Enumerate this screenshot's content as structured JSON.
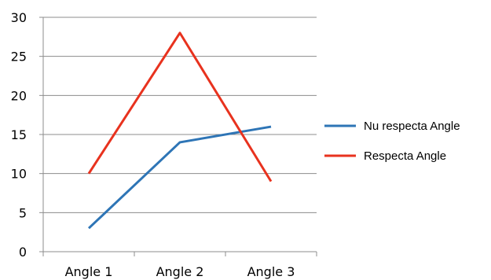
{
  "chart_data": {
    "type": "line",
    "categories": [
      "Angle 1",
      "Angle 2",
      "Angle 3"
    ],
    "series": [
      {
        "name": "Nu respecta Angle",
        "values": [
          3,
          14,
          16
        ],
        "color": "#2e75b6"
      },
      {
        "name": "Respecta Angle",
        "values": [
          10,
          28,
          9
        ],
        "color": "#e8321e"
      }
    ],
    "ylim": [
      0,
      30
    ],
    "yticks": [
      0,
      5,
      10,
      15,
      20,
      25,
      30
    ],
    "grid": true,
    "legend_position": "right",
    "title": "",
    "xlabel": "",
    "ylabel": ""
  }
}
